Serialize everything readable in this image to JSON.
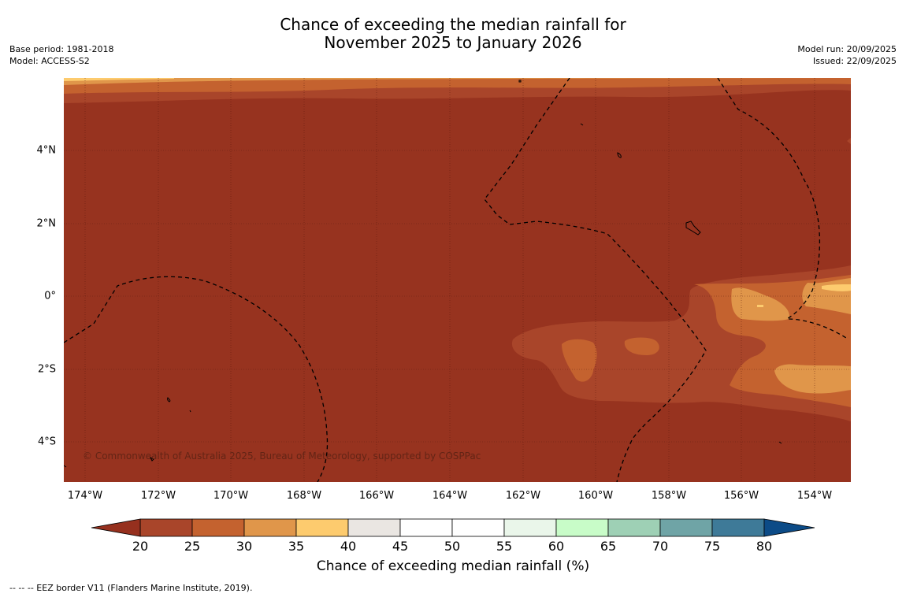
{
  "header": {
    "title_line1": "Chance of exceeding the median rainfall for",
    "title_line2": "November 2025 to January 2026",
    "base_period": "Base period: 1981-2018",
    "model": "Model: ACCESS-S2",
    "model_run": "Model run: 20/09/2025",
    "issued": "Issued: 22/09/2025"
  },
  "map": {
    "lat_labels": [
      "4°N",
      "2°N",
      "0°",
      "2°S",
      "4°S"
    ],
    "lon_labels": [
      "174°W",
      "172°W",
      "170°W",
      "168°W",
      "166°W",
      "164°W",
      "162°W",
      "160°W",
      "158°W",
      "156°W",
      "154°W"
    ],
    "copyright": "© Commonwealth of Australia 2025, Bureau of Meteorology, supported by COSPPac"
  },
  "colorbar": {
    "ticks": [
      "20",
      "25",
      "30",
      "35",
      "40",
      "45",
      "50",
      "55",
      "60",
      "65",
      "70",
      "75",
      "80"
    ],
    "colors": [
      "#a9452a",
      "#c4622f",
      "#e0964a",
      "#fdcb6e",
      "#eae6e2",
      "#ffffff",
      "#ffffff",
      "#eaf6ea",
      "#c8fcc8",
      "#9ed0b5",
      "#6fa4a6",
      "#3e7a98"
    ],
    "low_extend_color": "#96301e",
    "high_extend_color": "#0c4b87",
    "title": "Chance of exceeding median rainfall (%)"
  },
  "footer": {
    "legend_note": "--  --  -- EEZ border V11 (Flanders Marine Institute, 2019)."
  }
}
